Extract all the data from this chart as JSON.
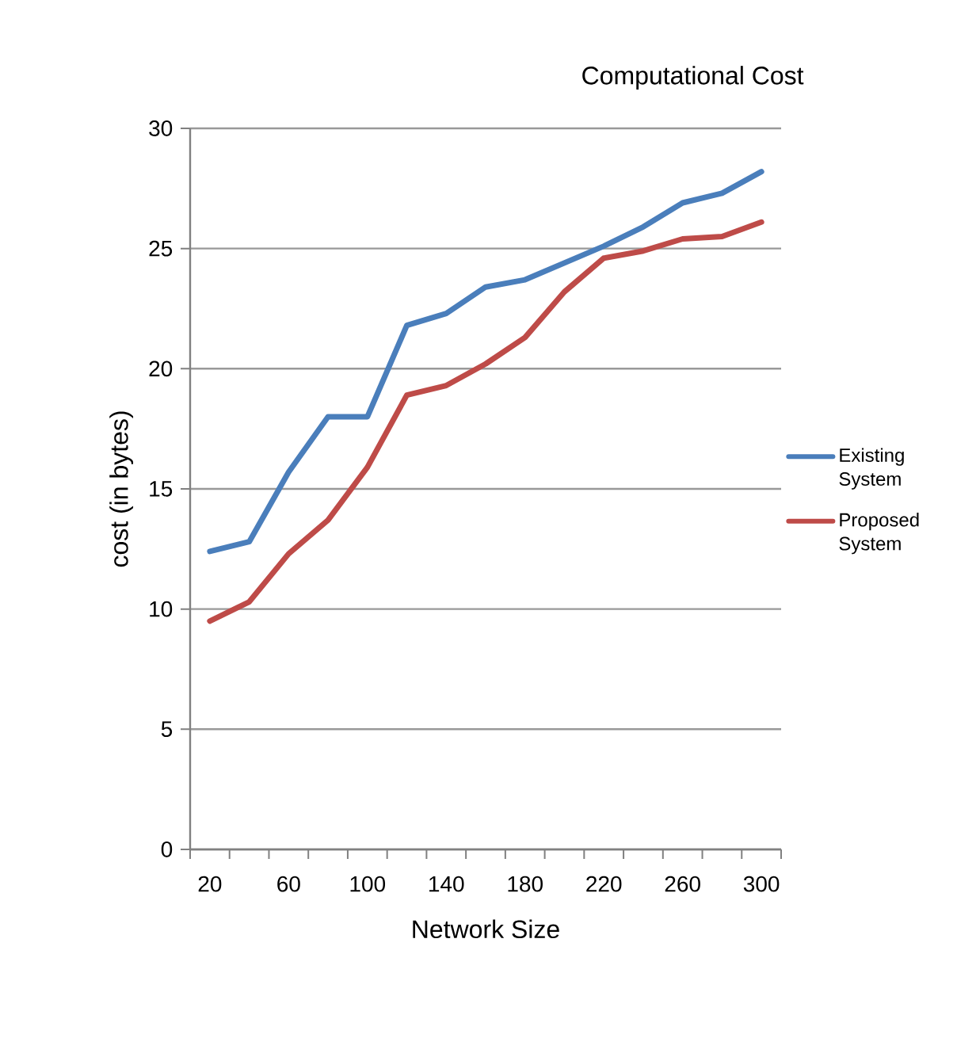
{
  "chart_data": {
    "type": "line",
    "title": "Computational Cost",
    "xlabel": "Network Size",
    "ylabel": "cost (in bytes)",
    "categories": [
      "20",
      null,
      "60",
      null,
      "100",
      null,
      "140",
      null,
      "180",
      null,
      "220",
      null,
      "260",
      null,
      "300"
    ],
    "series": [
      {
        "name": "Existing System",
        "color": "#4a7ebb",
        "values": [
          12.4,
          12.8,
          15.7,
          18.0,
          18.0,
          21.8,
          22.3,
          23.4,
          23.7,
          24.4,
          25.1,
          25.9,
          26.9,
          27.3,
          28.2
        ]
      },
      {
        "name": "Proposed System",
        "color": "#be4b48",
        "values": [
          9.5,
          10.3,
          12.3,
          13.7,
          15.9,
          18.9,
          19.3,
          20.2,
          21.3,
          23.2,
          24.6,
          24.9,
          25.4,
          25.5,
          26.1
        ]
      }
    ],
    "ylim": [
      0,
      30
    ],
    "yticks": [
      0,
      5,
      10,
      15,
      20,
      25,
      30
    ],
    "grid": "y",
    "legend": "right",
    "marker": "none",
    "line_style": "solid"
  }
}
